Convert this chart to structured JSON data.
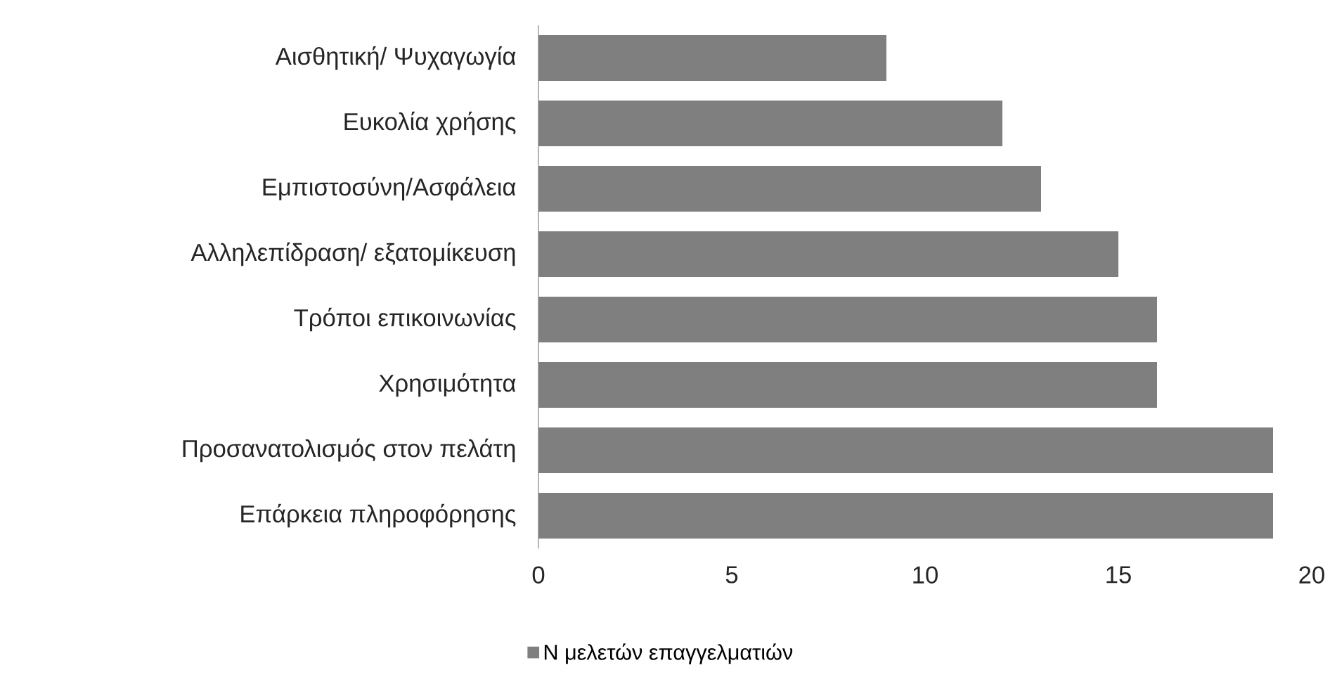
{
  "chart_data": {
    "type": "bar",
    "orientation": "horizontal",
    "categories": [
      "Αισθητική/ Ψυχαγωγία",
      "Ευκολία χρήσης",
      "Εμπιστοσύνη/Ασφάλεια",
      "Αλληλεπίδραση/ εξατομίκευση",
      "Τρόποι επικοινωνίας",
      "Χρησιμότητα",
      "Προσανατολισμός στον πελάτη",
      "Επάρκεια πληροφόρησης"
    ],
    "series": [
      {
        "name": "Ν μελετών επαγγελματιών",
        "color": "#7f7f7f",
        "values": [
          9,
          12,
          13,
          15,
          16,
          16,
          19,
          19
        ]
      }
    ],
    "xlim": [
      0,
      20
    ],
    "xticks": [
      0,
      5,
      10,
      15,
      20
    ],
    "legend": "bottom"
  }
}
